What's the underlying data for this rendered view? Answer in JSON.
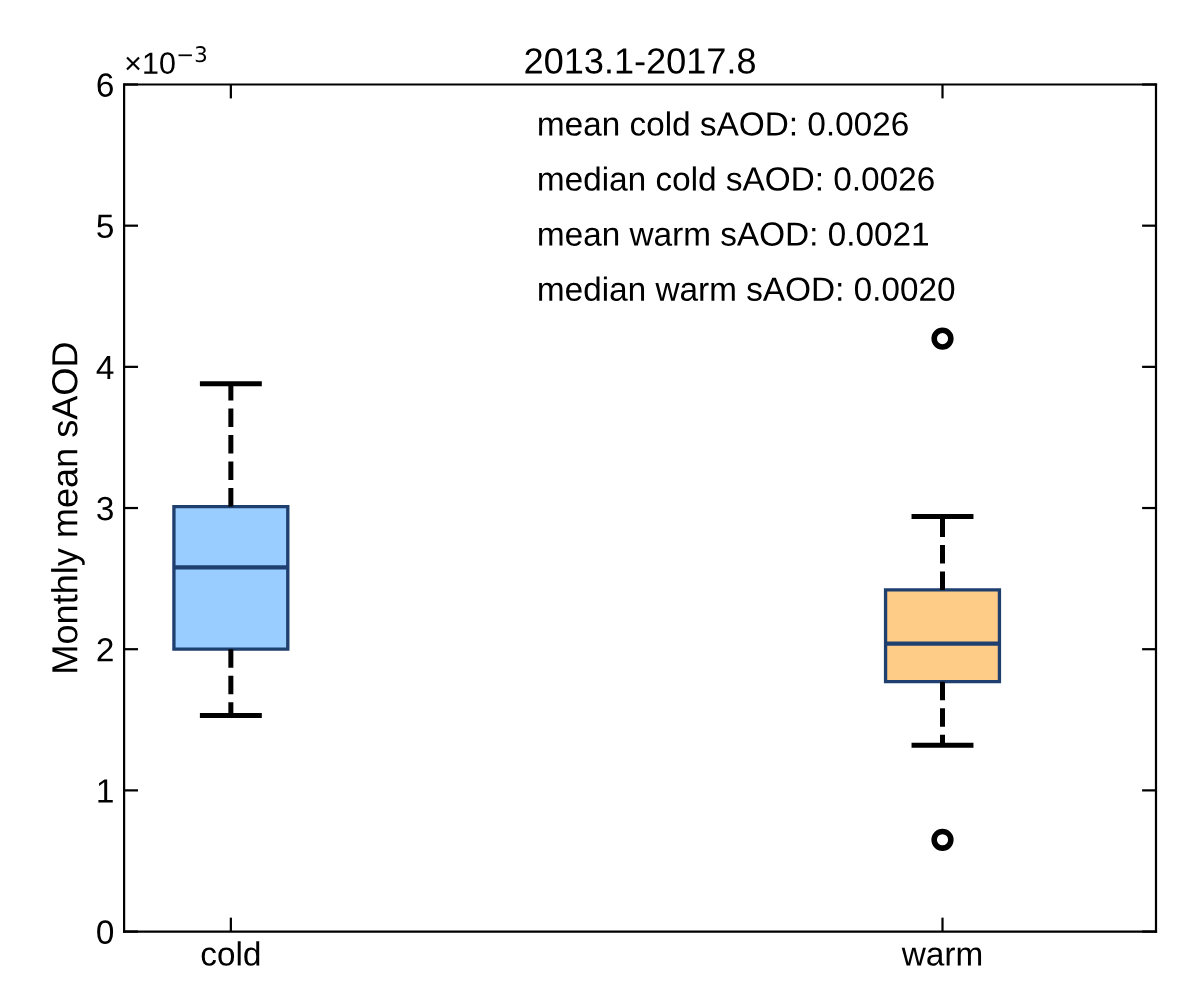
{
  "chart_data": {
    "type": "box",
    "title": "2013.1-2017.8",
    "ylabel": "Monthly mean sAOD",
    "categories": [
      "cold",
      "warm"
    ],
    "boxes": [
      {
        "low": 1.53,
        "q1": 2.0,
        "median": 2.58,
        "q3": 3.01,
        "high": 3.88
      },
      {
        "low": 1.32,
        "q1": 1.77,
        "median": 2.04,
        "q3": 2.42,
        "high": 2.94,
        "outliers": [
          4.2,
          0.65
        ]
      }
    ],
    "colors": [
      "#99ccff",
      "#ffcc88"
    ],
    "ylim": [
      0,
      6
    ],
    "yticks": [
      0,
      1,
      2,
      3,
      4,
      5,
      6
    ],
    "annotations": [
      "×10$^{−3}$",
      "mean cold sAOD: 0.0026",
      "median cold sAOD: 0.0026",
      "mean warm sAOD: 0.0021",
      "median warm sAOD: 0.0020"
    ],
    "grid": false,
    "legend": false
  }
}
